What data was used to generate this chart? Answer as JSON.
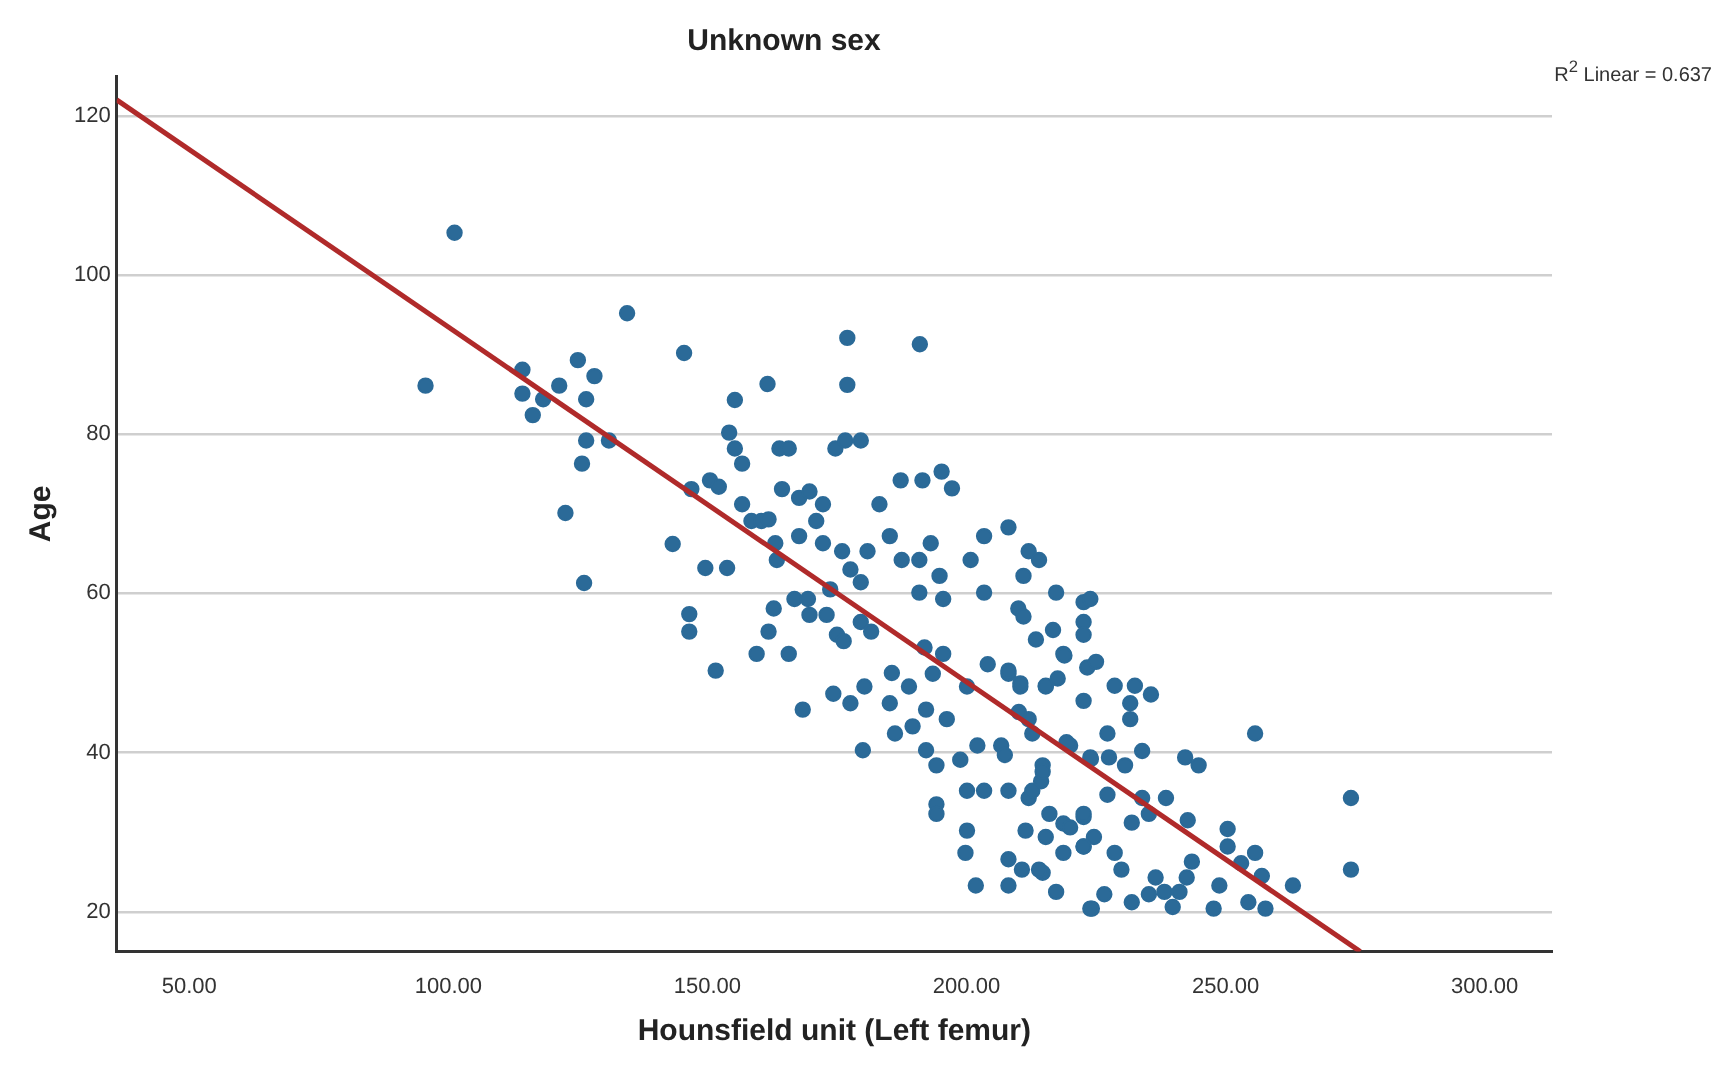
{
  "chart_data": {
    "type": "scatter",
    "title": "Unknown sex",
    "xlabel": "Hounsfield unit (Left femur)",
    "ylabel": "Age",
    "annotations": [
      "R$^{2}$ Linear = 0.637"
    ],
    "xlim": [
      36,
      313
    ],
    "ylim": [
      15,
      125
    ],
    "xticks": [
      {
        "value": 50,
        "label": "50.00"
      },
      {
        "value": 100,
        "label": "100.00"
      },
      {
        "value": 150,
        "label": "150.00"
      },
      {
        "value": 200,
        "label": "200.00"
      },
      {
        "value": 250,
        "label": "250.00"
      },
      {
        "value": 300,
        "label": "300.00"
      }
    ],
    "yticks": [
      20,
      40,
      60,
      80,
      100,
      120
    ],
    "grid": "y",
    "legend": false,
    "series": [
      {
        "marker": "circle",
        "color": "#2b6a98",
        "x": [
          101.2,
          134.5,
          95.6,
          114.3,
          114.3,
          125.0,
          128.2,
          121.4,
          118.3,
          126.6,
          116.3,
          126.6,
          131.0,
          125.8,
          122.6,
          126.2,
          143.3,
          145.5,
          177.0,
          191.0,
          177.0,
          161.6,
          155.3,
          154.2,
          155.3,
          156.7,
          163.9,
          165.7,
          174.7,
          176.6,
          179.6,
          146.9,
          150.5,
          152.2,
          164.4,
          167.7,
          169.7,
          172.3,
          171.0,
          156.7,
          158.5,
          160.4,
          161.8,
          183.2,
          187.3,
          191.5,
          195.2,
          197.2,
          149.6,
          153.8,
          163.1,
          163.4,
          167.7,
          172.3,
          176.0,
          180.9,
          177.6,
          179.6,
          173.7,
          185.2,
          187.5,
          190.9,
          193.1,
          194.8,
          190.9,
          195.5,
          200.8,
          203.4,
          208.1,
          212.0,
          214.0,
          211.0,
          203.4,
          210.0,
          211.0,
          217.3,
          222.6,
          222.6,
          166.8,
          169.4,
          169.7,
          173.0,
          162.8,
          161.8,
          146.5,
          146.5,
          159.5,
          165.7,
          151.6,
          175.0,
          176.3,
          179.6,
          181.6,
          185.6,
          188.9,
          191.9,
          193.5,
          195.5,
          200.1,
          204.1,
          208.1,
          210.4,
          215.3,
          218.7,
          222.6,
          174.3,
          177.6,
          180.3,
          168.4,
          185.2,
          192.2,
          196.2,
          186.2,
          189.6,
          180.0,
          192.2,
          194.2,
          198.8,
          202.1,
          206.7,
          207.4,
          212.0,
          214.7,
          214.4,
          220.0,
          224.0,
          200.1,
          203.4,
          208.1,
          212.0,
          194.2,
          194.2,
          200.1,
          211.4,
          215.3,
          218.7,
          222.6,
          199.8,
          208.1,
          210.7,
          214.7,
          218.7,
          222.6,
          201.8,
          208.1,
          217.3,
          224.2,
          223.9,
          213.4,
          216.7,
          218.9,
          223.3,
          225.0,
          208.1,
          210.4,
          215.3,
          217.6,
          222.6,
          228.6,
          232.5,
          235.6,
          231.6,
          231.6,
          227.2,
          212.7,
          210.1,
          219.3,
          255.7,
          223.9,
          227.5,
          230.6,
          233.9,
          242.2,
          244.8,
          214.7,
          212.7,
          227.2,
          233.9,
          238.5,
          274.2,
          216.0,
          222.6,
          235.2,
          231.9,
          242.7,
          220.0,
          224.6,
          250.4,
          250.4,
          255.7,
          253.0,
          222.6,
          228.6,
          243.5,
          229.9,
          214.0,
          274.2,
          257.0,
          263.0,
          236.5,
          242.5,
          248.8,
          226.6,
          231.9,
          235.2,
          238.2,
          241.1,
          239.8,
          247.7,
          254.4,
          257.7,
          223.9
        ],
        "values": [
          105.3,
          95.2,
          86.1,
          88.1,
          85.1,
          89.3,
          87.3,
          86.1,
          84.4,
          84.4,
          82.4,
          79.2,
          79.2,
          76.3,
          70.1,
          61.3,
          66.2,
          90.2,
          92.1,
          91.3,
          86.2,
          86.3,
          84.3,
          80.2,
          78.2,
          76.3,
          78.2,
          78.2,
          78.2,
          79.2,
          79.2,
          73.1,
          74.2,
          73.4,
          73.1,
          72.0,
          72.8,
          71.2,
          69.1,
          71.2,
          69.1,
          69.1,
          69.3,
          71.2,
          74.2,
          74.2,
          75.3,
          73.2,
          63.2,
          63.2,
          66.3,
          64.2,
          67.2,
          66.3,
          65.3,
          65.3,
          63.0,
          61.4,
          60.5,
          67.2,
          64.2,
          64.2,
          66.3,
          62.2,
          60.1,
          59.3,
          64.2,
          67.2,
          68.3,
          65.3,
          64.2,
          62.2,
          60.1,
          58.1,
          57.1,
          60.1,
          58.9,
          56.4,
          59.3,
          59.3,
          57.3,
          57.3,
          58.1,
          55.2,
          57.4,
          55.2,
          52.4,
          52.4,
          50.3,
          54.8,
          54.0,
          56.4,
          55.2,
          50.0,
          48.3,
          53.2,
          49.9,
          52.4,
          48.3,
          51.1,
          49.9,
          48.3,
          48.3,
          52.4,
          54.8,
          47.4,
          46.2,
          48.3,
          45.4,
          46.2,
          45.4,
          44.2,
          42.4,
          43.3,
          40.3,
          40.3,
          38.4,
          39.1,
          40.9,
          40.9,
          39.7,
          44.2,
          38.4,
          36.4,
          40.9,
          39.2,
          35.2,
          35.2,
          35.2,
          34.3,
          33.5,
          32.3,
          30.2,
          30.2,
          29.4,
          31.1,
          31.9,
          27.4,
          26.6,
          25.3,
          24.9,
          27.4,
          28.2,
          23.3,
          23.3,
          22.5,
          20.4,
          59.3,
          54.2,
          55.4,
          52.2,
          50.7,
          51.4,
          50.3,
          48.7,
          48.4,
          49.3,
          46.5,
          48.4,
          48.4,
          47.3,
          46.2,
          44.2,
          42.4,
          42.4,
          45.1,
          41.3,
          42.4,
          39.4,
          39.4,
          38.4,
          40.2,
          39.4,
          38.4,
          37.6,
          35.2,
          34.7,
          34.3,
          34.3,
          34.3,
          32.3,
          32.3,
          32.3,
          31.2,
          31.5,
          30.6,
          29.4,
          30.4,
          28.2,
          27.4,
          26.1,
          28.2,
          27.4,
          26.3,
          25.3,
          25.3,
          25.3,
          24.5,
          23.3,
          24.3,
          24.3,
          23.3,
          22.2,
          21.2,
          22.2,
          22.5,
          22.5,
          20.6,
          20.4,
          21.2,
          20.4,
          20.4
        ]
      },
      {
        "type": "line",
        "color": "#b02a2a",
        "x": [
          36,
          276
        ],
        "values": [
          122,
          15
        ]
      }
    ]
  }
}
